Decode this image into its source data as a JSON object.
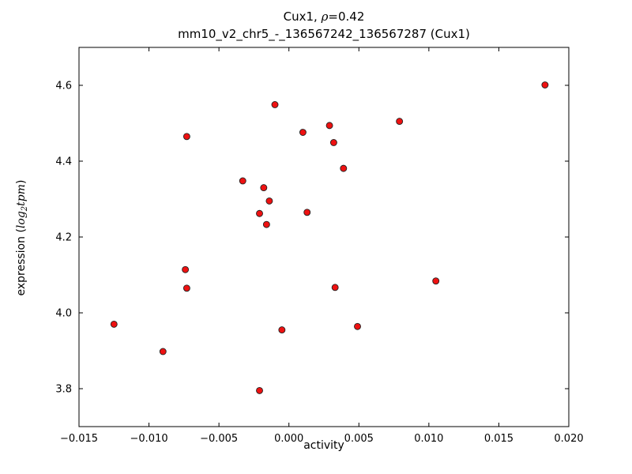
{
  "chart_data": {
    "type": "scatter",
    "title": {
      "gene": "Cux1, ",
      "rho": "ρ",
      "rho_eq": "=0.42",
      "line2": "mm10_v2_chr5_-_136567242_136567287 (Cux1)"
    },
    "xlabel": "activity",
    "ylabel": {
      "prefix": "expression (",
      "math_log": "log",
      "math_sub": "2",
      "math_tpm": "tpm",
      "suffix": ")"
    },
    "xlim": [
      -0.015,
      0.02
    ],
    "ylim": [
      3.7,
      4.7
    ],
    "xticks": [
      -0.015,
      -0.01,
      -0.005,
      0.0,
      0.005,
      0.01,
      0.015,
      0.02
    ],
    "xtick_labels": [
      "−0.015",
      "−0.010",
      "−0.005",
      "0.000",
      "0.005",
      "0.010",
      "0.015",
      "0.020"
    ],
    "yticks": [
      3.8,
      4.0,
      4.2,
      4.4,
      4.6
    ],
    "ytick_labels": [
      "3.8",
      "4.0",
      "4.2",
      "4.4",
      "4.6"
    ],
    "grid": false,
    "legend": null,
    "marker": {
      "shape": "circle",
      "color": "#ee1111",
      "edge_color": "#222222",
      "radius": 4
    },
    "points": [
      [
        0.0183,
        4.601
      ],
      [
        -0.001,
        4.549
      ],
      [
        -0.0073,
        4.465
      ],
      [
        0.001,
        4.476
      ],
      [
        0.0029,
        4.494
      ],
      [
        0.0079,
        4.505
      ],
      [
        0.0032,
        4.449
      ],
      [
        0.0039,
        4.381
      ],
      [
        -0.0033,
        4.348
      ],
      [
        -0.0018,
        4.33
      ],
      [
        -0.0014,
        4.295
      ],
      [
        -0.0021,
        4.262
      ],
      [
        0.0013,
        4.265
      ],
      [
        -0.0016,
        4.233
      ],
      [
        -0.0074,
        4.114
      ],
      [
        -0.0073,
        4.065
      ],
      [
        0.0033,
        4.067
      ],
      [
        0.0105,
        4.084
      ],
      [
        -0.0125,
        3.97
      ],
      [
        -0.0005,
        3.955
      ],
      [
        0.0049,
        3.964
      ],
      [
        -0.009,
        3.898
      ],
      [
        -0.0021,
        3.795
      ]
    ]
  }
}
